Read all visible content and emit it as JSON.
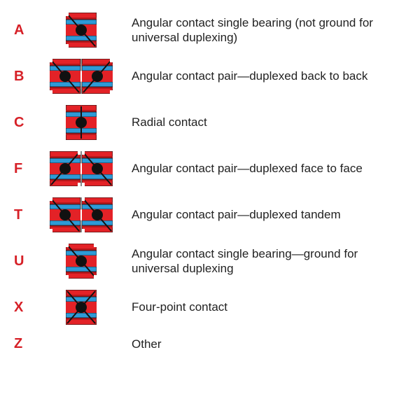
{
  "colors": {
    "code": "#d62027",
    "text": "#222222",
    "bearing_outer": "#e32227",
    "bearing_outer_dark": "#b8181c",
    "bearing_inner": "#2e9ad6",
    "ball": "#111111",
    "stroke": "#111111",
    "bg": "#ffffff"
  },
  "font": {
    "code_size": 20,
    "desc_size": 17,
    "family": "Segoe UI, Arial, sans-serif"
  },
  "rows": [
    {
      "code": "A",
      "icon": "angular_single",
      "desc": "Angular contact single bearing (not ground for universal duplexing)"
    },
    {
      "code": "B",
      "icon": "angular_pair_back",
      "desc": "Angular contact pair—duplexed back to back"
    },
    {
      "code": "C",
      "icon": "radial",
      "desc": "Radial contact"
    },
    {
      "code": "F",
      "icon": "angular_pair_face",
      "desc": "Angular contact pair—duplexed face to face"
    },
    {
      "code": "T",
      "icon": "angular_pair_tandem",
      "desc": "Angular contact pair—duplexed tandem"
    },
    {
      "code": "U",
      "icon": "angular_single_ground",
      "desc": "Angular contact single bearing—ground for universal duplexing"
    },
    {
      "code": "X",
      "icon": "four_point",
      "desc": "Four-point contact"
    },
    {
      "code": "Z",
      "icon": "none",
      "desc": "Other"
    }
  ]
}
